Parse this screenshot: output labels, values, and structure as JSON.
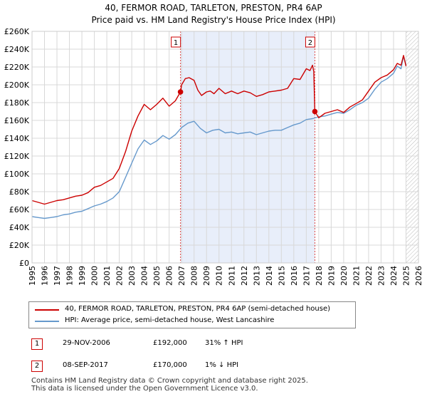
{
  "title_line1": "40, FERMOR ROAD, TARLETON, PRESTON, PR4 6AP",
  "title_line2": "Price paid vs. HM Land Registry's House Price Index (HPI)",
  "chart_data": {
    "type": "line",
    "title": "40, FERMOR ROAD, TARLETON, PRESTON, PR4 6AP - Price paid vs. HM Land Registry's House Price Index (HPI)",
    "xlabel": "",
    "ylabel": "",
    "xlim": [
      1995,
      2026
    ],
    "ylim": [
      0,
      260000
    ],
    "x_ticks": [
      1995,
      1996,
      1997,
      1998,
      1999,
      2000,
      2001,
      2002,
      2003,
      2004,
      2005,
      2006,
      2007,
      2008,
      2009,
      2010,
      2011,
      2012,
      2013,
      2014,
      2015,
      2016,
      2017,
      2018,
      2019,
      2020,
      2021,
      2022,
      2023,
      2024,
      2025,
      2026
    ],
    "y_ticks": [
      0,
      20000,
      40000,
      60000,
      80000,
      100000,
      120000,
      140000,
      160000,
      180000,
      200000,
      220000,
      240000,
      260000
    ],
    "y_tick_labels": [
      "£0",
      "£20K",
      "£40K",
      "£60K",
      "£80K",
      "£100K",
      "£120K",
      "£140K",
      "£160K",
      "£180K",
      "£200K",
      "£220K",
      "£240K",
      "£260K"
    ],
    "grid": true,
    "sale_shading": [
      2006.91,
      2017.69
    ],
    "future_hatch_from": 2025.0,
    "series": [
      {
        "name": "40, FERMOR ROAD, TARLETON, PRESTON, PR4 6AP (semi-detached house)",
        "color": "#cc0000",
        "x": [
          1995.0,
          1995.5,
          1996.0,
          1996.5,
          1997.0,
          1997.5,
          1998.0,
          1998.5,
          1999.0,
          1999.5,
          2000.0,
          2000.5,
          2001.0,
          2001.5,
          2002.0,
          2002.5,
          2003.0,
          2003.5,
          2004.0,
          2004.5,
          2005.0,
          2005.5,
          2006.0,
          2006.5,
          2006.91,
          2007.0,
          2007.3,
          2007.6,
          2008.0,
          2008.3,
          2008.6,
          2009.0,
          2009.3,
          2009.6,
          2010.0,
          2010.5,
          2011.0,
          2011.5,
          2012.0,
          2012.5,
          2013.0,
          2013.5,
          2014.0,
          2014.5,
          2015.0,
          2015.5,
          2016.0,
          2016.5,
          2017.0,
          2017.3,
          2017.5,
          2017.6,
          2017.69,
          2018.0,
          2018.5,
          2019.0,
          2019.5,
          2020.0,
          2020.5,
          2021.0,
          2021.5,
          2022.0,
          2022.5,
          2023.0,
          2023.5,
          2024.0,
          2024.3,
          2024.6,
          2024.8,
          2025.0
        ],
        "values": [
          70000,
          68000,
          66000,
          68000,
          70000,
          71000,
          73000,
          75000,
          76000,
          79000,
          85000,
          87000,
          91000,
          95000,
          106000,
          125000,
          148000,
          165000,
          178000,
          172000,
          178000,
          185000,
          176000,
          182000,
          192000,
          200000,
          207000,
          208000,
          205000,
          194000,
          188000,
          192000,
          193000,
          190000,
          196000,
          190000,
          193000,
          190000,
          193000,
          191000,
          187000,
          189000,
          192000,
          193000,
          194000,
          196000,
          207000,
          206000,
          218000,
          216000,
          222000,
          215000,
          170000,
          163000,
          168000,
          170000,
          172000,
          169000,
          175000,
          179000,
          183000,
          193000,
          203000,
          208000,
          211000,
          217000,
          224000,
          222000,
          233000,
          221000
        ]
      },
      {
        "name": "HPI: Average price, semi-detached house, West Lancashire",
        "color": "#6699cc",
        "x": [
          1995.0,
          1995.5,
          1996.0,
          1996.5,
          1997.0,
          1997.5,
          1998.0,
          1998.5,
          1999.0,
          1999.5,
          2000.0,
          2000.5,
          2001.0,
          2001.5,
          2002.0,
          2002.5,
          2003.0,
          2003.5,
          2004.0,
          2004.5,
          2005.0,
          2005.5,
          2006.0,
          2006.5,
          2007.0,
          2007.5,
          2008.0,
          2008.5,
          2009.0,
          2009.5,
          2010.0,
          2010.5,
          2011.0,
          2011.5,
          2012.0,
          2012.5,
          2013.0,
          2013.5,
          2014.0,
          2014.5,
          2015.0,
          2015.5,
          2016.0,
          2016.5,
          2017.0,
          2017.5,
          2018.0,
          2018.5,
          2019.0,
          2019.5,
          2020.0,
          2020.5,
          2021.0,
          2021.5,
          2022.0,
          2022.5,
          2023.0,
          2023.5,
          2024.0,
          2024.3,
          2024.6,
          2024.8,
          2025.0
        ],
        "values": [
          52000,
          51000,
          50000,
          51000,
          52000,
          54000,
          55000,
          57000,
          58000,
          61000,
          64000,
          66000,
          69000,
          73000,
          80000,
          96000,
          112000,
          128000,
          138000,
          133000,
          137000,
          143000,
          139000,
          144000,
          152000,
          157000,
          159000,
          151000,
          146000,
          149000,
          150000,
          146000,
          147000,
          145000,
          146000,
          147000,
          144000,
          146000,
          148000,
          149000,
          149000,
          152000,
          155000,
          157000,
          161000,
          162000,
          164000,
          165000,
          167000,
          169000,
          168000,
          172000,
          177000,
          180000,
          185000,
          195000,
          203000,
          207000,
          213000,
          221000,
          218000,
          232000,
          222000
        ]
      }
    ],
    "annotations": [
      {
        "label": "1",
        "x": 2006.91,
        "y": 192000
      },
      {
        "label": "2",
        "x": 2017.69,
        "y": 170000
      }
    ]
  },
  "legend": {
    "property_label": "40, FERMOR ROAD, TARLETON, PRESTON, PR4 6AP (semi-detached house)",
    "hpi_label": "HPI: Average price, semi-detached house, West Lancashire"
  },
  "transactions": [
    {
      "num": "1",
      "date": "29-NOV-2006",
      "price": "£192,000",
      "hpi": "31% ↑ HPI"
    },
    {
      "num": "2",
      "date": "08-SEP-2017",
      "price": "£170,000",
      "hpi": "1% ↓ HPI"
    }
  ],
  "footer_line1": "Contains HM Land Registry data © Crown copyright and database right 2025.",
  "footer_line2": "This data is licensed under the Open Government Licence v3.0."
}
